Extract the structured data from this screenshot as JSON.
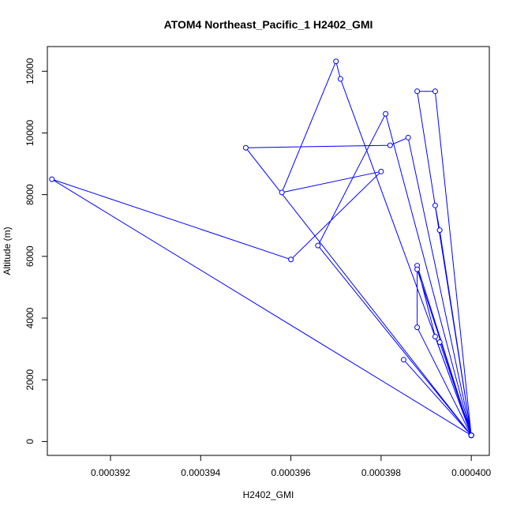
{
  "chart_data": {
    "type": "line",
    "title": "ATOM4 Northeast_Pacific_1 H2402_GMI",
    "xlabel": "H2402_GMI",
    "ylabel": "Altitude (m)",
    "xlim": [
      0.0003906,
      0.0004004
    ],
    "ylim": [
      -450,
      12800
    ],
    "x_ticks": [
      0.000392,
      0.000394,
      0.000396,
      0.000398,
      0.0004
    ],
    "x_tick_labels": [
      "0.000392",
      "0.000394",
      "0.000396",
      "0.000398",
      "0.000400"
    ],
    "y_ticks": [
      0,
      2000,
      4000,
      6000,
      8000,
      10000,
      12000
    ],
    "y_tick_labels": [
      "0",
      "2000",
      "4000",
      "6000",
      "8000",
      "10000",
      "12000"
    ],
    "grid": false,
    "legend": "none",
    "color": "#0000ff",
    "series": [
      {
        "x": [
          0.0004,
          0.0003988,
          0.0003992,
          0.0004,
          0.0003986,
          0.0003982,
          0.000395,
          0.0004,
          0.0003993,
          0.0003992,
          0.0004,
          0.0003992,
          0.0003988,
          0.0004,
          0.0003981,
          0.0003966,
          0.0004,
          0.0003988,
          0.0003988,
          0.0004,
          0.0003971,
          0.000397,
          0.0003958,
          0.000398,
          0.000396,
          0.0003907,
          0.0004,
          0.0003985,
          0.0004,
          0.0003993,
          0.0004
        ],
        "y": [
          200,
          11350,
          11350,
          200,
          9850,
          9600,
          9520,
          200,
          6850,
          7650,
          200,
          3400,
          5700,
          200,
          10620,
          6350,
          200,
          5580,
          3700,
          200,
          11750,
          12320,
          8070,
          8750,
          5900,
          8500,
          200,
          2650,
          200,
          3220,
          200
        ]
      }
    ]
  }
}
